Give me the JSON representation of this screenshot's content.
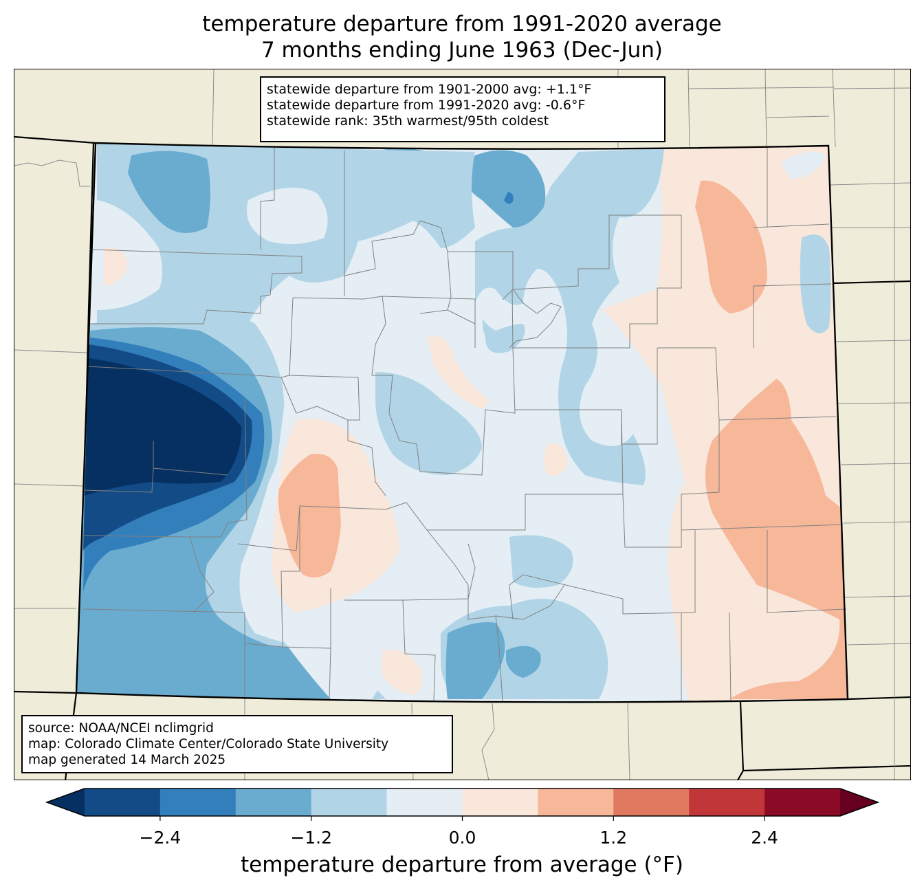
{
  "title": {
    "line1": "temperature departure from 1991-2020 average",
    "line2": "7 months ending June 1963 (Dec-Jun)"
  },
  "stats": {
    "line1": "statewide departure from 1901-2000 avg: +1.1°F",
    "line2": "statewide departure from 1991-2020 avg: -0.6°F",
    "line3": "statewide rank: 35th warmest/95th coldest"
  },
  "source": {
    "line1": "source: NOAA/NCEI nclimgrid",
    "line2": "map: Colorado Climate Center/Colorado State University",
    "line3": "map generated 14 March 2025"
  },
  "colorbar": {
    "label": "temperature departure from average (°F)",
    "ticks": [
      "−2.4",
      "−1.2",
      "0.0",
      "1.2",
      "2.4"
    ],
    "tick_values": [
      -2.4,
      -1.2,
      0.0,
      1.2,
      2.4
    ],
    "bounds": [
      -3.0,
      -2.4,
      -1.8,
      -1.2,
      -0.6,
      0.0,
      0.6,
      1.2,
      1.8,
      2.4,
      3.0
    ],
    "colors": {
      "under": "#053061",
      "bins": [
        "#134b87",
        "#327fbb",
        "#6aacd0",
        "#b1d5e7",
        "#e4eef4",
        "#fae7dc",
        "#f7b799",
        "#e17860",
        "#c13639",
        "#8b0a26"
      ],
      "over": "#67001f"
    }
  },
  "map": {
    "background": "#efedda",
    "county_line_color": "#808080",
    "state_line_color": "#000000"
  }
}
